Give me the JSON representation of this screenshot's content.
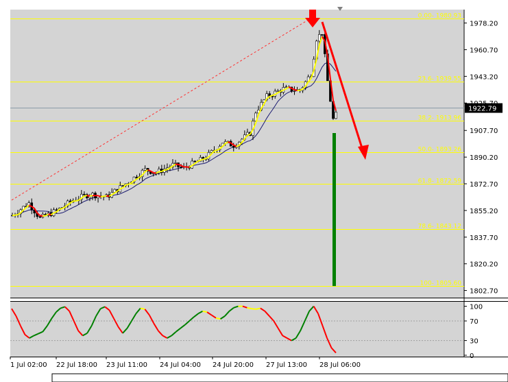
{
  "chart_data": {
    "type": "candlestick",
    "instrument_price_current": "1922.79",
    "y_axis_ticks": [
      "1978.20",
      "1960.70",
      "1943.20",
      "1925.70",
      "1907.70",
      "1890.20",
      "1872.70",
      "1855.20",
      "1837.70",
      "1820.20",
      "1802.70"
    ],
    "x_axis_ticks": [
      "1 Jul 02:00",
      "22 Jul 18:00",
      "23 Jul 11:00",
      "24 Jul 04:00",
      "24 Jul 20:00",
      "27 Jul 13:00",
      "28 Jul 06:00"
    ],
    "fibonacci_levels": [
      {
        "label": "0.00- 1980.93",
        "price": 1980.93
      },
      {
        "label": "23.6- 1939.55",
        "price": 1939.55
      },
      {
        "label": "38.2- 1913.96",
        "price": 1913.96
      },
      {
        "label": "50.0- 1893.26",
        "price": 1893.26
      },
      {
        "label": "61.8- 1872.59",
        "price": 1872.59
      },
      {
        "label": "78.6- 1843.12",
        "price": 1843.12
      },
      {
        "label": "100- 1805.60",
        "price": 1805.6
      }
    ],
    "ylim": [
      1798,
      1987
    ],
    "oscillator": {
      "ticks": [
        "100",
        "70",
        "30",
        "0"
      ],
      "ylim": [
        0,
        105
      ]
    },
    "colors": {
      "background": "#d4d4d4",
      "fib_line": "#ffff00",
      "fib_text": "#ffff00",
      "moving_avg_fast_up": "#ffff00",
      "moving_avg_fast_down": "#ff0000",
      "moving_avg_slow": "#191970",
      "arrow": "#ff0000",
      "volume_bar": "#008000",
      "current_price_bg": "#000000",
      "oscillator_up": "#008000",
      "oscillator_down": "#ff0000",
      "oscillator_flat": "#ffff00"
    }
  }
}
